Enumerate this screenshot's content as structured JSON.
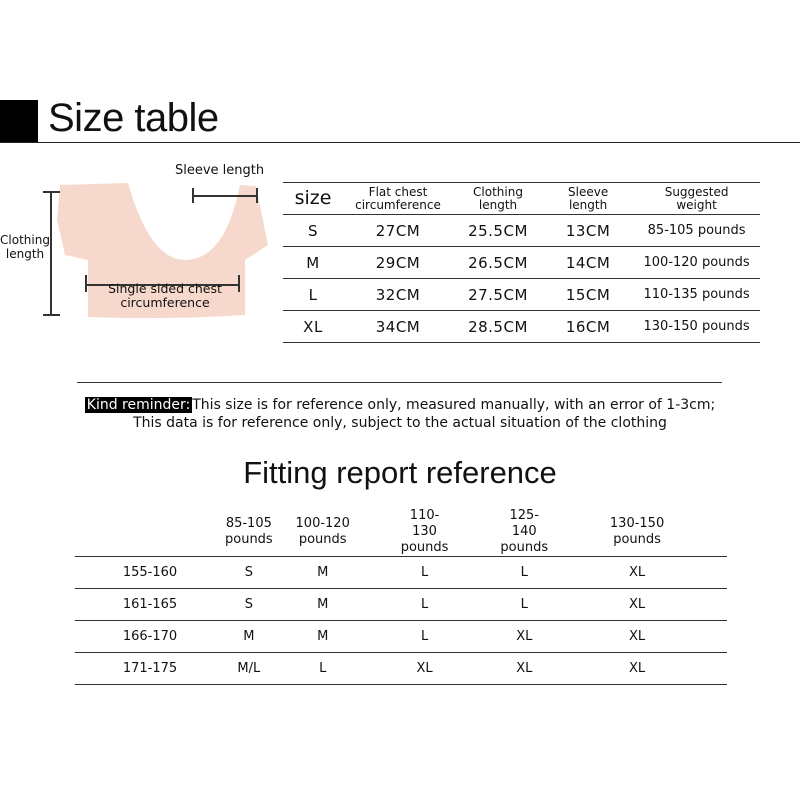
{
  "header": {
    "title": "Size table"
  },
  "diagram": {
    "sleeve_label": "Sleeve length",
    "length_label": "Clothing length",
    "chest_label": "Single sided chest circumference",
    "garment_color": "#f6d9cc"
  },
  "size_table": {
    "columns": [
      "size",
      "Flat chest circumference",
      "Clothing length",
      "Sleeve length",
      "Suggested weight"
    ],
    "rows": [
      [
        "S",
        "27CM",
        "25.5CM",
        "13CM",
        "85-105 pounds"
      ],
      [
        "M",
        "29CM",
        "26.5CM",
        "14CM",
        "100-120 pounds"
      ],
      [
        "L",
        "32CM",
        "27.5CM",
        "15CM",
        "110-135 pounds"
      ],
      [
        "XL",
        "34CM",
        "28.5CM",
        "16CM",
        "130-150 pounds"
      ]
    ]
  },
  "reminder": {
    "tag": "Kind reminder:",
    "line1": "This size is for reference only, measured manually, with an error of 1-3cm;",
    "line2": "This data is for reference only, subject to the actual situation of the clothing"
  },
  "fitting": {
    "title": "Fitting report reference",
    "columns": [
      "",
      "85-105 pounds",
      "100-120 pounds",
      "110-130 pounds",
      "125-140 pounds",
      "130-150 pounds"
    ],
    "rows": [
      [
        "155-160",
        "S",
        "M",
        "L",
        "L",
        "XL"
      ],
      [
        "161-165",
        "S",
        "M",
        "L",
        "L",
        "XL"
      ],
      [
        "166-170",
        "M",
        "M",
        "L",
        "XL",
        "XL"
      ],
      [
        "171-175",
        "M/L",
        "L",
        "XL",
        "XL",
        "XL"
      ]
    ]
  }
}
